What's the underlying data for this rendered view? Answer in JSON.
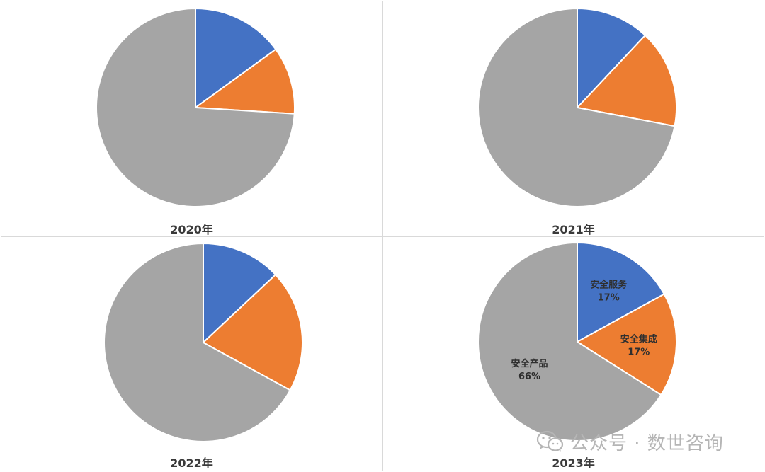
{
  "chart_data": [
    {
      "type": "pie",
      "title": "2020年",
      "series": [
        {
          "name": "安全服务",
          "value": 15
        },
        {
          "name": "安全集成",
          "value": 11
        },
        {
          "name": "安全产品",
          "value": 74
        }
      ]
    },
    {
      "type": "pie",
      "title": "2021年",
      "series": [
        {
          "name": "安全服务",
          "value": 12
        },
        {
          "name": "安全集成",
          "value": 16
        },
        {
          "name": "安全产品",
          "value": 72
        }
      ]
    },
    {
      "type": "pie",
      "title": "2022年",
      "series": [
        {
          "name": "安全服务",
          "value": 13
        },
        {
          "name": "安全集成",
          "value": 20
        },
        {
          "name": "安全产品",
          "value": 67
        }
      ]
    },
    {
      "type": "pie",
      "title": "2023年",
      "series": [
        {
          "name": "安全服务",
          "value": 17,
          "label": "17%"
        },
        {
          "name": "安全集成",
          "value": 17,
          "label": "17%"
        },
        {
          "name": "安全产品",
          "value": 66,
          "label": "66%"
        }
      ],
      "show_labels": true
    }
  ],
  "colors": {
    "安全服务": "#4472c4",
    "安全集成": "#ed7d31",
    "安全产品": "#a5a5a5"
  },
  "watermark": {
    "text": "公众号 · 数世咨询",
    "icon": "wechat-icon"
  }
}
